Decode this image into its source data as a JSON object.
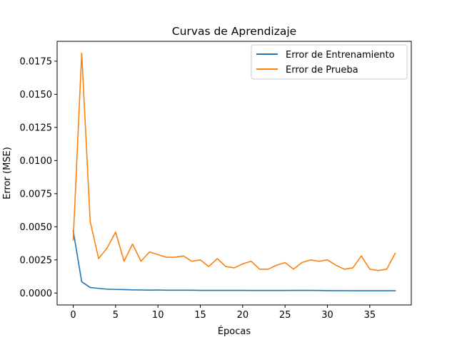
{
  "chart_data": {
    "type": "line",
    "title": "Curvas de Aprendizaje",
    "xlabel": "Épocas",
    "ylabel": "Error (MSE)",
    "xlim": [
      -1.9,
      39.9
    ],
    "ylim": [
      -0.0009,
      0.019
    ],
    "x_ticks": [
      0,
      5,
      10,
      15,
      20,
      25,
      30,
      35
    ],
    "x_tick_labels": [
      "0",
      "5",
      "10",
      "15",
      "20",
      "25",
      "30",
      "35"
    ],
    "y_ticks": [
      0.0,
      0.0025,
      0.005,
      0.0075,
      0.01,
      0.0125,
      0.015,
      0.0175
    ],
    "y_tick_labels": [
      "0.0000",
      "0.0025",
      "0.0050",
      "0.0075",
      "0.0100",
      "0.0125",
      "0.0150",
      "0.0175"
    ],
    "legend_position": "top-right",
    "grid": false,
    "x": [
      0,
      1,
      2,
      3,
      4,
      5,
      6,
      7,
      8,
      9,
      10,
      11,
      12,
      13,
      14,
      15,
      16,
      17,
      18,
      19,
      20,
      21,
      22,
      23,
      24,
      25,
      26,
      27,
      28,
      29,
      30,
      31,
      32,
      33,
      34,
      35,
      36,
      37,
      38
    ],
    "series": [
      {
        "name": "Error de Entrenamiento",
        "color": "#1f77b4",
        "values": [
          0.0047,
          0.00085,
          0.00042,
          0.00035,
          0.00029,
          0.00027,
          0.00026,
          0.00024,
          0.00023,
          0.00022,
          0.00023,
          0.00021,
          0.00021,
          0.00021,
          0.00021,
          0.0002,
          0.0002,
          0.0002,
          0.0002,
          0.0002,
          0.0002,
          0.00019,
          0.00019,
          0.00019,
          0.00019,
          0.00019,
          0.0002,
          0.0002,
          0.0002,
          0.00019,
          0.00018,
          0.00018,
          0.00018,
          0.00017,
          0.00017,
          0.00017,
          0.00017,
          0.00017,
          0.00017
        ]
      },
      {
        "name": "Error de Prueba",
        "color": "#ff7f0e",
        "values": [
          0.004,
          0.0181,
          0.0054,
          0.0026,
          0.0034,
          0.0046,
          0.0024,
          0.0037,
          0.0024,
          0.0031,
          0.0029,
          0.0027,
          0.0027,
          0.0028,
          0.0024,
          0.0025,
          0.002,
          0.0026,
          0.002,
          0.0019,
          0.0022,
          0.0024,
          0.0018,
          0.0018,
          0.0021,
          0.0023,
          0.0018,
          0.0023,
          0.0025,
          0.0024,
          0.0025,
          0.0021,
          0.0018,
          0.0019,
          0.0028,
          0.0018,
          0.0017,
          0.0018,
          0.003
        ]
      }
    ]
  }
}
